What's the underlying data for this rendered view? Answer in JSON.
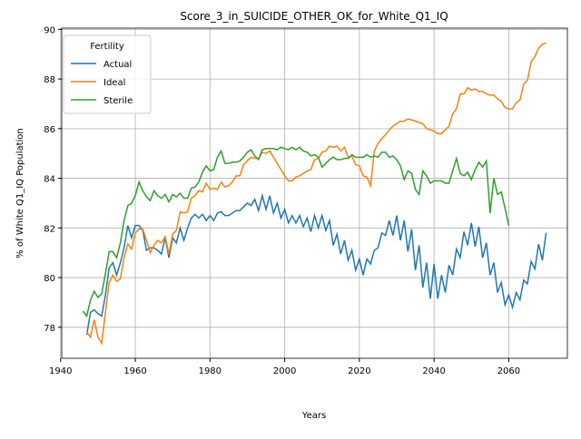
{
  "chart_data": {
    "type": "line",
    "title": "Score_3_in_SUICIDE_OTHER_OK_for_White_Q1_IQ",
    "x_label": "Years",
    "y_label": "% of White Q1_IQ Population",
    "legend_title": "Fertility",
    "legend_loc": "upper left",
    "grid": true,
    "x": [
      1946,
      1947,
      1948,
      1949,
      1950,
      1951,
      1952,
      1953,
      1954,
      1955,
      1956,
      1957,
      1958,
      1959,
      1960,
      1961,
      1962,
      1963,
      1964,
      1965,
      1966,
      1967,
      1968,
      1969,
      1970,
      1971,
      1972,
      1973,
      1974,
      1975,
      1976,
      1977,
      1978,
      1979,
      1980,
      1981,
      1982,
      1983,
      1984,
      1985,
      1986,
      1987,
      1988,
      1989,
      1990,
      1991,
      1992,
      1993,
      1994,
      1995,
      1996,
      1997,
      1998,
      1999,
      2000,
      2001,
      2002,
      2003,
      2004,
      2005,
      2006,
      2007,
      2008,
      2009,
      2010,
      2011,
      2012,
      2013,
      2014,
      2015,
      2016,
      2017,
      2018,
      2019,
      2020,
      2021,
      2022,
      2023,
      2024,
      2025,
      2026,
      2027,
      2028,
      2029,
      2030,
      2031,
      2032,
      2033,
      2034,
      2035,
      2036,
      2037,
      2038,
      2039,
      2040,
      2041,
      2042,
      2043,
      2044,
      2045,
      2046,
      2047,
      2048,
      2049,
      2050,
      2051,
      2052,
      2053,
      2054,
      2055,
      2056,
      2057,
      2058,
      2059,
      2060,
      2061,
      2062,
      2063,
      2064,
      2065,
      2066,
      2067,
      2068,
      2069,
      2070
    ],
    "series": [
      {
        "name": "Actual",
        "color": "#1f77b4",
        "values": [
          null,
          77.7,
          78.6,
          78.7,
          78.55,
          78.45,
          79.3,
          80.4,
          80.6,
          80.1,
          80.6,
          81.2,
          82.1,
          81.6,
          82.1,
          82.1,
          81.9,
          81.1,
          81.2,
          81.2,
          81.1,
          80.95,
          81.6,
          80.8,
          81.6,
          81.4,
          82.0,
          81.5,
          82.0,
          82.4,
          82.55,
          82.4,
          82.55,
          82.3,
          82.5,
          82.3,
          82.6,
          82.65,
          82.5,
          82.5,
          82.6,
          82.7,
          82.7,
          82.85,
          83.0,
          82.9,
          83.15,
          82.7,
          83.3,
          82.75,
          83.3,
          82.6,
          83.0,
          82.4,
          82.75,
          82.2,
          82.5,
          82.2,
          82.5,
          82.05,
          82.4,
          81.85,
          82.5,
          82.0,
          82.5,
          81.9,
          82.3,
          81.3,
          81.75,
          80.95,
          81.5,
          80.7,
          81.1,
          80.3,
          80.75,
          80.1,
          80.75,
          80.55,
          81.1,
          81.2,
          81.8,
          81.7,
          82.3,
          81.7,
          82.5,
          81.5,
          82.3,
          81.05,
          81.95,
          80.3,
          81.3,
          79.6,
          80.6,
          79.15,
          80.55,
          79.15,
          80.1,
          79.4,
          80.5,
          80.1,
          81.15,
          80.8,
          81.85,
          81.3,
          82.2,
          81.25,
          82.05,
          80.8,
          81.4,
          80.1,
          80.6,
          79.4,
          79.8,
          78.9,
          79.3,
          78.8,
          79.4,
          79.1,
          79.9,
          79.75,
          80.65,
          80.35,
          81.35,
          80.7,
          81.8
        ]
      },
      {
        "name": "Ideal",
        "color": "#ff7f0e",
        "values": [
          null,
          77.8,
          77.6,
          78.3,
          77.6,
          77.35,
          78.6,
          79.8,
          80.1,
          79.85,
          79.95,
          80.8,
          81.35,
          81.15,
          81.8,
          81.95,
          81.95,
          81.5,
          81.0,
          81.3,
          81.5,
          81.4,
          81.65,
          80.95,
          81.75,
          81.9,
          82.65,
          82.6,
          82.65,
          83.2,
          83.3,
          83.5,
          83.45,
          83.8,
          83.55,
          83.6,
          83.55,
          83.85,
          83.65,
          83.7,
          83.85,
          84.1,
          84.1,
          84.55,
          84.7,
          84.85,
          84.8,
          84.8,
          85.05,
          85.0,
          85.1,
          84.85,
          84.6,
          84.35,
          84.1,
          83.9,
          83.9,
          84.05,
          84.1,
          84.2,
          84.3,
          84.35,
          84.75,
          84.8,
          85.05,
          85.1,
          85.3,
          85.25,
          85.3,
          85.1,
          85.25,
          84.85,
          84.9,
          84.55,
          84.5,
          84.1,
          84.05,
          83.7,
          85.1,
          85.4,
          85.6,
          85.75,
          85.95,
          86.1,
          86.2,
          86.3,
          86.3,
          86.4,
          86.35,
          86.3,
          86.25,
          86.2,
          86.0,
          85.95,
          85.9,
          85.8,
          85.8,
          85.95,
          86.1,
          86.6,
          86.8,
          87.4,
          87.4,
          87.65,
          87.55,
          87.6,
          87.5,
          87.5,
          87.4,
          87.35,
          87.35,
          87.2,
          87.1,
          86.85,
          86.8,
          86.8,
          87.05,
          87.15,
          87.8,
          87.95,
          88.7,
          88.9,
          89.25,
          89.4,
          89.45
        ]
      },
      {
        "name": "Sterile",
        "color": "#2ca02c",
        "values": [
          78.65,
          78.45,
          79.1,
          79.45,
          79.2,
          79.35,
          80.15,
          81.05,
          81.05,
          80.8,
          81.4,
          82.3,
          82.9,
          83.0,
          83.3,
          83.85,
          83.5,
          83.25,
          83.1,
          83.5,
          83.3,
          83.2,
          83.35,
          83.05,
          83.35,
          83.25,
          83.4,
          83.2,
          83.2,
          83.6,
          83.65,
          83.85,
          84.25,
          84.5,
          84.3,
          84.35,
          84.85,
          85.1,
          84.6,
          84.6,
          84.65,
          84.65,
          84.7,
          84.85,
          85.05,
          85.15,
          84.9,
          84.75,
          85.15,
          85.2,
          85.2,
          85.2,
          85.15,
          85.25,
          85.2,
          85.15,
          85.25,
          85.15,
          85.25,
          85.1,
          85.05,
          84.9,
          84.95,
          84.85,
          84.45,
          84.6,
          84.75,
          84.85,
          84.75,
          84.75,
          84.8,
          84.8,
          84.95,
          84.85,
          84.85,
          84.85,
          84.95,
          84.85,
          84.9,
          84.85,
          85.05,
          85.05,
          84.85,
          84.9,
          84.75,
          84.5,
          83.95,
          84.3,
          84.2,
          83.55,
          83.35,
          84.3,
          84.1,
          83.8,
          83.9,
          83.9,
          83.9,
          83.8,
          83.8,
          84.3,
          84.8,
          84.2,
          84.1,
          84.25,
          83.95,
          84.35,
          84.65,
          84.45,
          84.7,
          82.6,
          84.0,
          83.35,
          83.45,
          82.8,
          82.1,
          null,
          null,
          null,
          null,
          null,
          null,
          null,
          null,
          null,
          null
        ]
      }
    ],
    "xlim": [
      1940.3,
      2075.7
    ],
    "ylim": [
      76.75,
      90.05
    ],
    "xticks": [
      1940,
      1960,
      1980,
      2000,
      2020,
      2040,
      2060
    ],
    "yticks": [
      78,
      80,
      82,
      84,
      86,
      88,
      90
    ]
  }
}
